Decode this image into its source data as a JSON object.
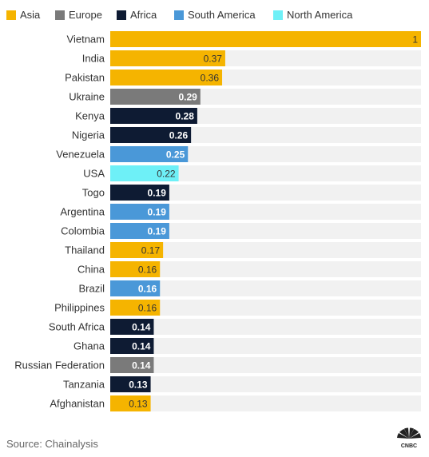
{
  "source": "Source: Chainalysis",
  "logo_text": "CNBC",
  "colors": {
    "Asia": "#f5b400",
    "Europe": "#7a7a7a",
    "Africa": "#0e1b33",
    "South America": "#4a98d8",
    "North America": "#6ef0f7",
    "track": "#f1f1f1"
  },
  "chart_data": {
    "type": "bar",
    "orientation": "horizontal",
    "title": "",
    "xlabel": "",
    "ylabel": "",
    "xlim": [
      0,
      1
    ],
    "grid": false,
    "legend_position": "top",
    "legend": [
      "Asia",
      "Europe",
      "Africa",
      "South America",
      "North America"
    ],
    "categories": [
      "Vietnam",
      "India",
      "Pakistan",
      "Ukraine",
      "Kenya",
      "Nigeria",
      "Venezuela",
      "USA",
      "Togo",
      "Argentina",
      "Colombia",
      "Thailand",
      "China",
      "Brazil",
      "Philippines",
      "South Africa",
      "Ghana",
      "Russian Federation",
      "Tanzania",
      "Afghanistan"
    ],
    "values": [
      1,
      0.37,
      0.36,
      0.29,
      0.28,
      0.26,
      0.25,
      0.22,
      0.19,
      0.19,
      0.19,
      0.17,
      0.16,
      0.16,
      0.16,
      0.14,
      0.14,
      0.14,
      0.13,
      0.13
    ],
    "value_labels": [
      "1",
      "0.37",
      "0.36",
      "0.29",
      "0.28",
      "0.26",
      "0.25",
      "0.22",
      "0.19",
      "0.19",
      "0.19",
      "0.17",
      "0.16",
      "0.16",
      "0.16",
      "0.14",
      "0.14",
      "0.14",
      "0.13",
      "0.13"
    ],
    "regions": [
      "Asia",
      "Asia",
      "Asia",
      "Europe",
      "Africa",
      "Africa",
      "South America",
      "North America",
      "Africa",
      "South America",
      "South America",
      "Asia",
      "Asia",
      "South America",
      "Asia",
      "Africa",
      "Africa",
      "Europe",
      "Africa",
      "Asia"
    ]
  }
}
